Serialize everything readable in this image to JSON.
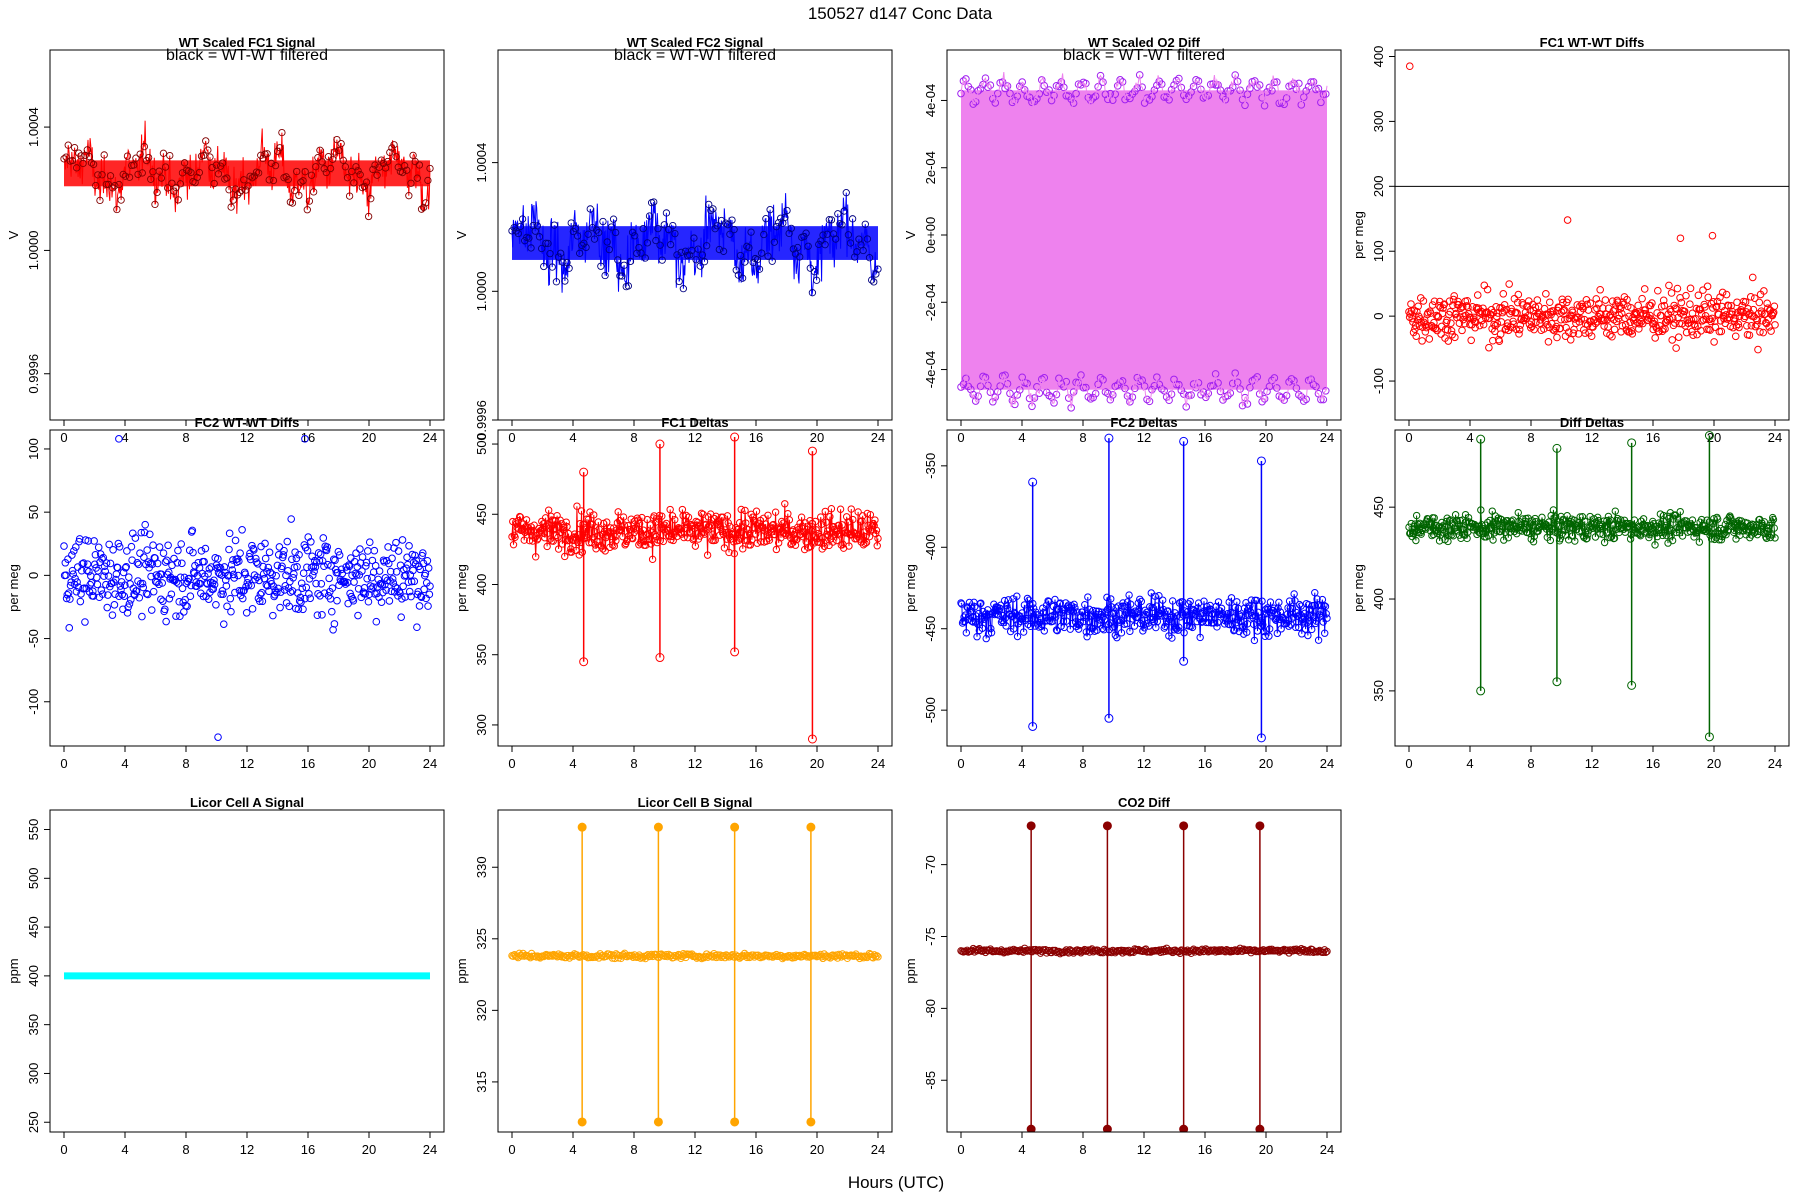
{
  "title": "150527   d147   Conc Data",
  "xlabel": "Hours (UTC)",
  "x_ticks": [
    "0",
    "4",
    "8",
    "12",
    "16",
    "20",
    "24"
  ],
  "chart_data": [
    {
      "id": "p1",
      "type": "line",
      "title": "WT Scaled FC1 Signal",
      "annotation": "black = WT-WT filtered",
      "ylabel": "V",
      "color": "#ff0000",
      "marker": "#800000",
      "xlim": [
        0,
        24
      ],
      "ylim": [
        0.99945,
        1.00065
      ],
      "yticks": [
        0.9996,
        1.0,
        1.0004
      ],
      "ytick_labels": [
        "0.9996",
        "1.0000",
        "1.0004"
      ],
      "style": "dense",
      "base": 1.00025,
      "spread": 0.00012,
      "noise": 6e-05,
      "npoints": 520,
      "fill": true
    },
    {
      "id": "p2",
      "type": "line",
      "title": "WT Scaled FC2 Signal",
      "annotation": "black = WT-WT filtered",
      "ylabel": "V",
      "color": "#0000ff",
      "marker": "#000080",
      "xlim": [
        0,
        24
      ],
      "ylim": [
        0.9996,
        1.00075
      ],
      "yticks": [
        0.9996,
        1.0,
        1.0004
      ],
      "ytick_labels": [
        "0.9996",
        "1.0000",
        "1.0004"
      ],
      "style": "dense",
      "base": 1.00015,
      "spread": 0.00015,
      "noise": 7e-05,
      "npoints": 520,
      "fill": true
    },
    {
      "id": "p3",
      "type": "line",
      "title": "WT Scaled O2 Diff",
      "annotation": "black = WT-WT filtered",
      "ylabel": "V",
      "color": "#ee82ee",
      "marker": "#a020f0",
      "xlim": [
        0,
        24
      ],
      "ylim": [
        -0.00055,
        0.00055
      ],
      "yticks": [
        -0.0004,
        -0.0002,
        0,
        0.0002,
        0.0004
      ],
      "ytick_labels": [
        "-4e-04",
        "-2e-04",
        "0e+00",
        "2e-04",
        "4e-04"
      ],
      "style": "twoband",
      "upper": 0.00043,
      "lower": -0.00046,
      "noise": 3e-05,
      "npoints": 300
    },
    {
      "id": "p4",
      "type": "scatter",
      "title": "FC1 WT-WT Diffs",
      "annotation": "",
      "ylabel": "per meg",
      "color": "#ff0000",
      "xlim": [
        0,
        24
      ],
      "ylim": [
        -160,
        410
      ],
      "yticks": [
        -100,
        0,
        100,
        200,
        300,
        400
      ],
      "ytick_labels": [
        "-100",
        "0",
        "100",
        "200",
        "300",
        "400"
      ],
      "hline": 200,
      "base": 0,
      "spread": 45,
      "npoints": 560,
      "outliers": [
        [
          0.05,
          385
        ],
        [
          10.4,
          148
        ],
        [
          17.8,
          120
        ],
        [
          19.9,
          124
        ]
      ]
    },
    {
      "id": "p5",
      "type": "scatter",
      "title": "FC2 WT-WT Diffs",
      "annotation": "",
      "ylabel": "per meg",
      "color": "#0000ff",
      "xlim": [
        0,
        24
      ],
      "ylim": [
        -135,
        115
      ],
      "yticks": [
        -100,
        -50,
        0,
        50,
        100
      ],
      "ytick_labels": [
        "-100",
        "-50",
        "0",
        "50",
        "100"
      ],
      "base": 0,
      "spread": 38,
      "npoints": 560,
      "outliers": [
        [
          3.6,
          108
        ],
        [
          15.8,
          108
        ],
        [
          10.1,
          -128
        ]
      ]
    },
    {
      "id": "p6",
      "type": "line",
      "title": "FC1 Deltas",
      "annotation": "",
      "ylabel": "per meg",
      "color": "#ff0000",
      "marker": "#ff0000",
      "xlim": [
        0,
        24
      ],
      "ylim": [
        285,
        510
      ],
      "yticks": [
        300,
        350,
        400,
        450,
        500
      ],
      "ytick_labels": [
        "300",
        "350",
        "400",
        "450",
        "500"
      ],
      "style": "deltas",
      "base": 438,
      "noise": 12,
      "npoints": 480,
      "spikes": [
        [
          4.7,
          345,
          480
        ],
        [
          9.7,
          348,
          500
        ],
        [
          14.6,
          352,
          505
        ],
        [
          19.7,
          290,
          495
        ]
      ]
    },
    {
      "id": "p7",
      "type": "line",
      "title": "FC2 Deltas",
      "annotation": "",
      "ylabel": "per meg",
      "color": "#0000ff",
      "marker": "#0000ff",
      "xlim": [
        0,
        24
      ],
      "ylim": [
        -522,
        -328
      ],
      "yticks": [
        -500,
        -450,
        -400,
        -350
      ],
      "ytick_labels": [
        "-500",
        "-450",
        "-400",
        "-350"
      ],
      "style": "deltas",
      "base": -442,
      "noise": 10,
      "npoints": 480,
      "spikes": [
        [
          4.7,
          -510,
          -360
        ],
        [
          9.7,
          -505,
          -333
        ],
        [
          14.6,
          -470,
          -335
        ],
        [
          19.7,
          -517,
          -347
        ]
      ]
    },
    {
      "id": "p8",
      "type": "line",
      "title": "Diff Deltas",
      "annotation": "",
      "ylabel": "per meg",
      "color": "#006400",
      "marker": "#006400",
      "xlim": [
        0,
        24
      ],
      "ylim": [
        320,
        492
      ],
      "yticks": [
        350,
        400,
        450
      ],
      "ytick_labels": [
        "350",
        "400",
        "450"
      ],
      "style": "deltas",
      "base": 439,
      "noise": 6,
      "npoints": 480,
      "spikes": [
        [
          4.7,
          350,
          487
        ],
        [
          9.7,
          355,
          482
        ],
        [
          14.6,
          353,
          485
        ],
        [
          19.7,
          325,
          489
        ]
      ]
    },
    {
      "id": "p9",
      "type": "line",
      "title": "Licor Cell A Signal",
      "annotation": "",
      "ylabel": "ppm",
      "color": "#00ffff",
      "marker": "#00ffff",
      "xlim": [
        0,
        24
      ],
      "ylim": [
        240,
        570
      ],
      "yticks": [
        250,
        300,
        350,
        400,
        450,
        500,
        550
      ],
      "ytick_labels": [
        "250",
        "300",
        "350",
        "400",
        "450",
        "500",
        "550"
      ],
      "style": "flat",
      "base": 400
    },
    {
      "id": "p10",
      "type": "line",
      "title": "Licor Cell B Signal",
      "annotation": "",
      "ylabel": "ppm",
      "color": "#ffa500",
      "marker": "#ffa500",
      "xlim": [
        0,
        24
      ],
      "ylim": [
        311.5,
        334
      ],
      "yticks": [
        315,
        320,
        325,
        330
      ],
      "ytick_labels": [
        "315",
        "320",
        "325",
        "330"
      ],
      "style": "licor",
      "base": 323.8,
      "noise": 0.15,
      "npoints": 300,
      "spikes": [
        [
          4.6,
          312.2,
          332.8
        ],
        [
          9.6,
          312.2,
          332.8
        ],
        [
          14.6,
          312.2,
          332.8
        ],
        [
          19.6,
          312.2,
          332.8
        ]
      ]
    },
    {
      "id": "p11",
      "type": "line",
      "title": "CO2 Diff",
      "annotation": "",
      "ylabel": "ppm",
      "color": "#8b0000",
      "marker": "#8b0000",
      "xlim": [
        0,
        24
      ],
      "ylim": [
        -88.6,
        -66.2
      ],
      "yticks": [
        -85,
        -80,
        -75,
        -70
      ],
      "ytick_labels": [
        "-85",
        "-80",
        "-75",
        "-70"
      ],
      "style": "licor",
      "base": -76.0,
      "noise": 0.12,
      "npoints": 300,
      "spikes": [
        [
          4.6,
          -88.4,
          -67.3
        ],
        [
          9.6,
          -88.4,
          -67.3
        ],
        [
          14.6,
          -88.4,
          -67.3
        ],
        [
          19.6,
          -88.4,
          -67.3
        ]
      ]
    }
  ]
}
